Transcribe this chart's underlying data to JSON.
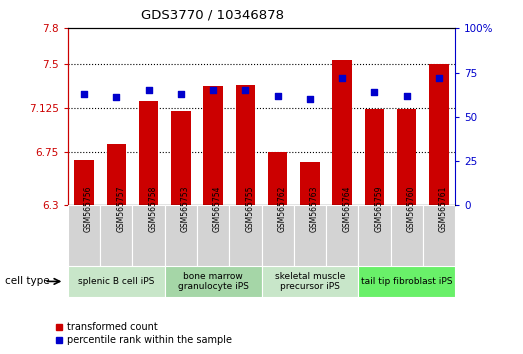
{
  "title": "GDS3770 / 10346878",
  "categories": [
    "GSM565756",
    "GSM565757",
    "GSM565758",
    "GSM565753",
    "GSM565754",
    "GSM565755",
    "GSM565762",
    "GSM565763",
    "GSM565764",
    "GSM565759",
    "GSM565760",
    "GSM565761"
  ],
  "bar_values": [
    6.68,
    6.82,
    7.18,
    7.1,
    7.31,
    7.32,
    6.75,
    6.67,
    7.53,
    7.12,
    7.12,
    7.5
  ],
  "dot_values": [
    63,
    61,
    65,
    63,
    65,
    65,
    62,
    60,
    72,
    64,
    62,
    72
  ],
  "bar_color": "#cc0000",
  "dot_color": "#0000cc",
  "ylim_left": [
    6.3,
    7.8
  ],
  "ylim_right": [
    0,
    100
  ],
  "yticks_left": [
    6.3,
    6.75,
    7.125,
    7.5,
    7.8
  ],
  "ytick_labels_left": [
    "6.3",
    "6.75",
    "7.125",
    "7.5",
    "7.8"
  ],
  "yticks_right": [
    0,
    25,
    50,
    75,
    100
  ],
  "ytick_labels_right": [
    "0",
    "25",
    "50",
    "75",
    "100%"
  ],
  "hlines": [
    6.75,
    7.125,
    7.5
  ],
  "cell_type_groups": [
    {
      "label": "splenic B cell iPS",
      "start": 0,
      "end": 3,
      "color": "#c8e6c9"
    },
    {
      "label": "bone marrow\ngranulocyte iPS",
      "start": 3,
      "end": 6,
      "color": "#a5d6a7"
    },
    {
      "label": "skeletal muscle\nprecursor iPS",
      "start": 6,
      "end": 9,
      "color": "#c8e6c9"
    },
    {
      "label": "tail tip fibroblast iPS",
      "start": 9,
      "end": 12,
      "color": "#69f069"
    }
  ],
  "xtick_bg_color": "#d3d3d3",
  "legend_bar_label": "transformed count",
  "legend_dot_label": "percentile rank within the sample",
  "cell_type_label": "cell type",
  "bar_width": 0.6,
  "background_color": "#ffffff"
}
